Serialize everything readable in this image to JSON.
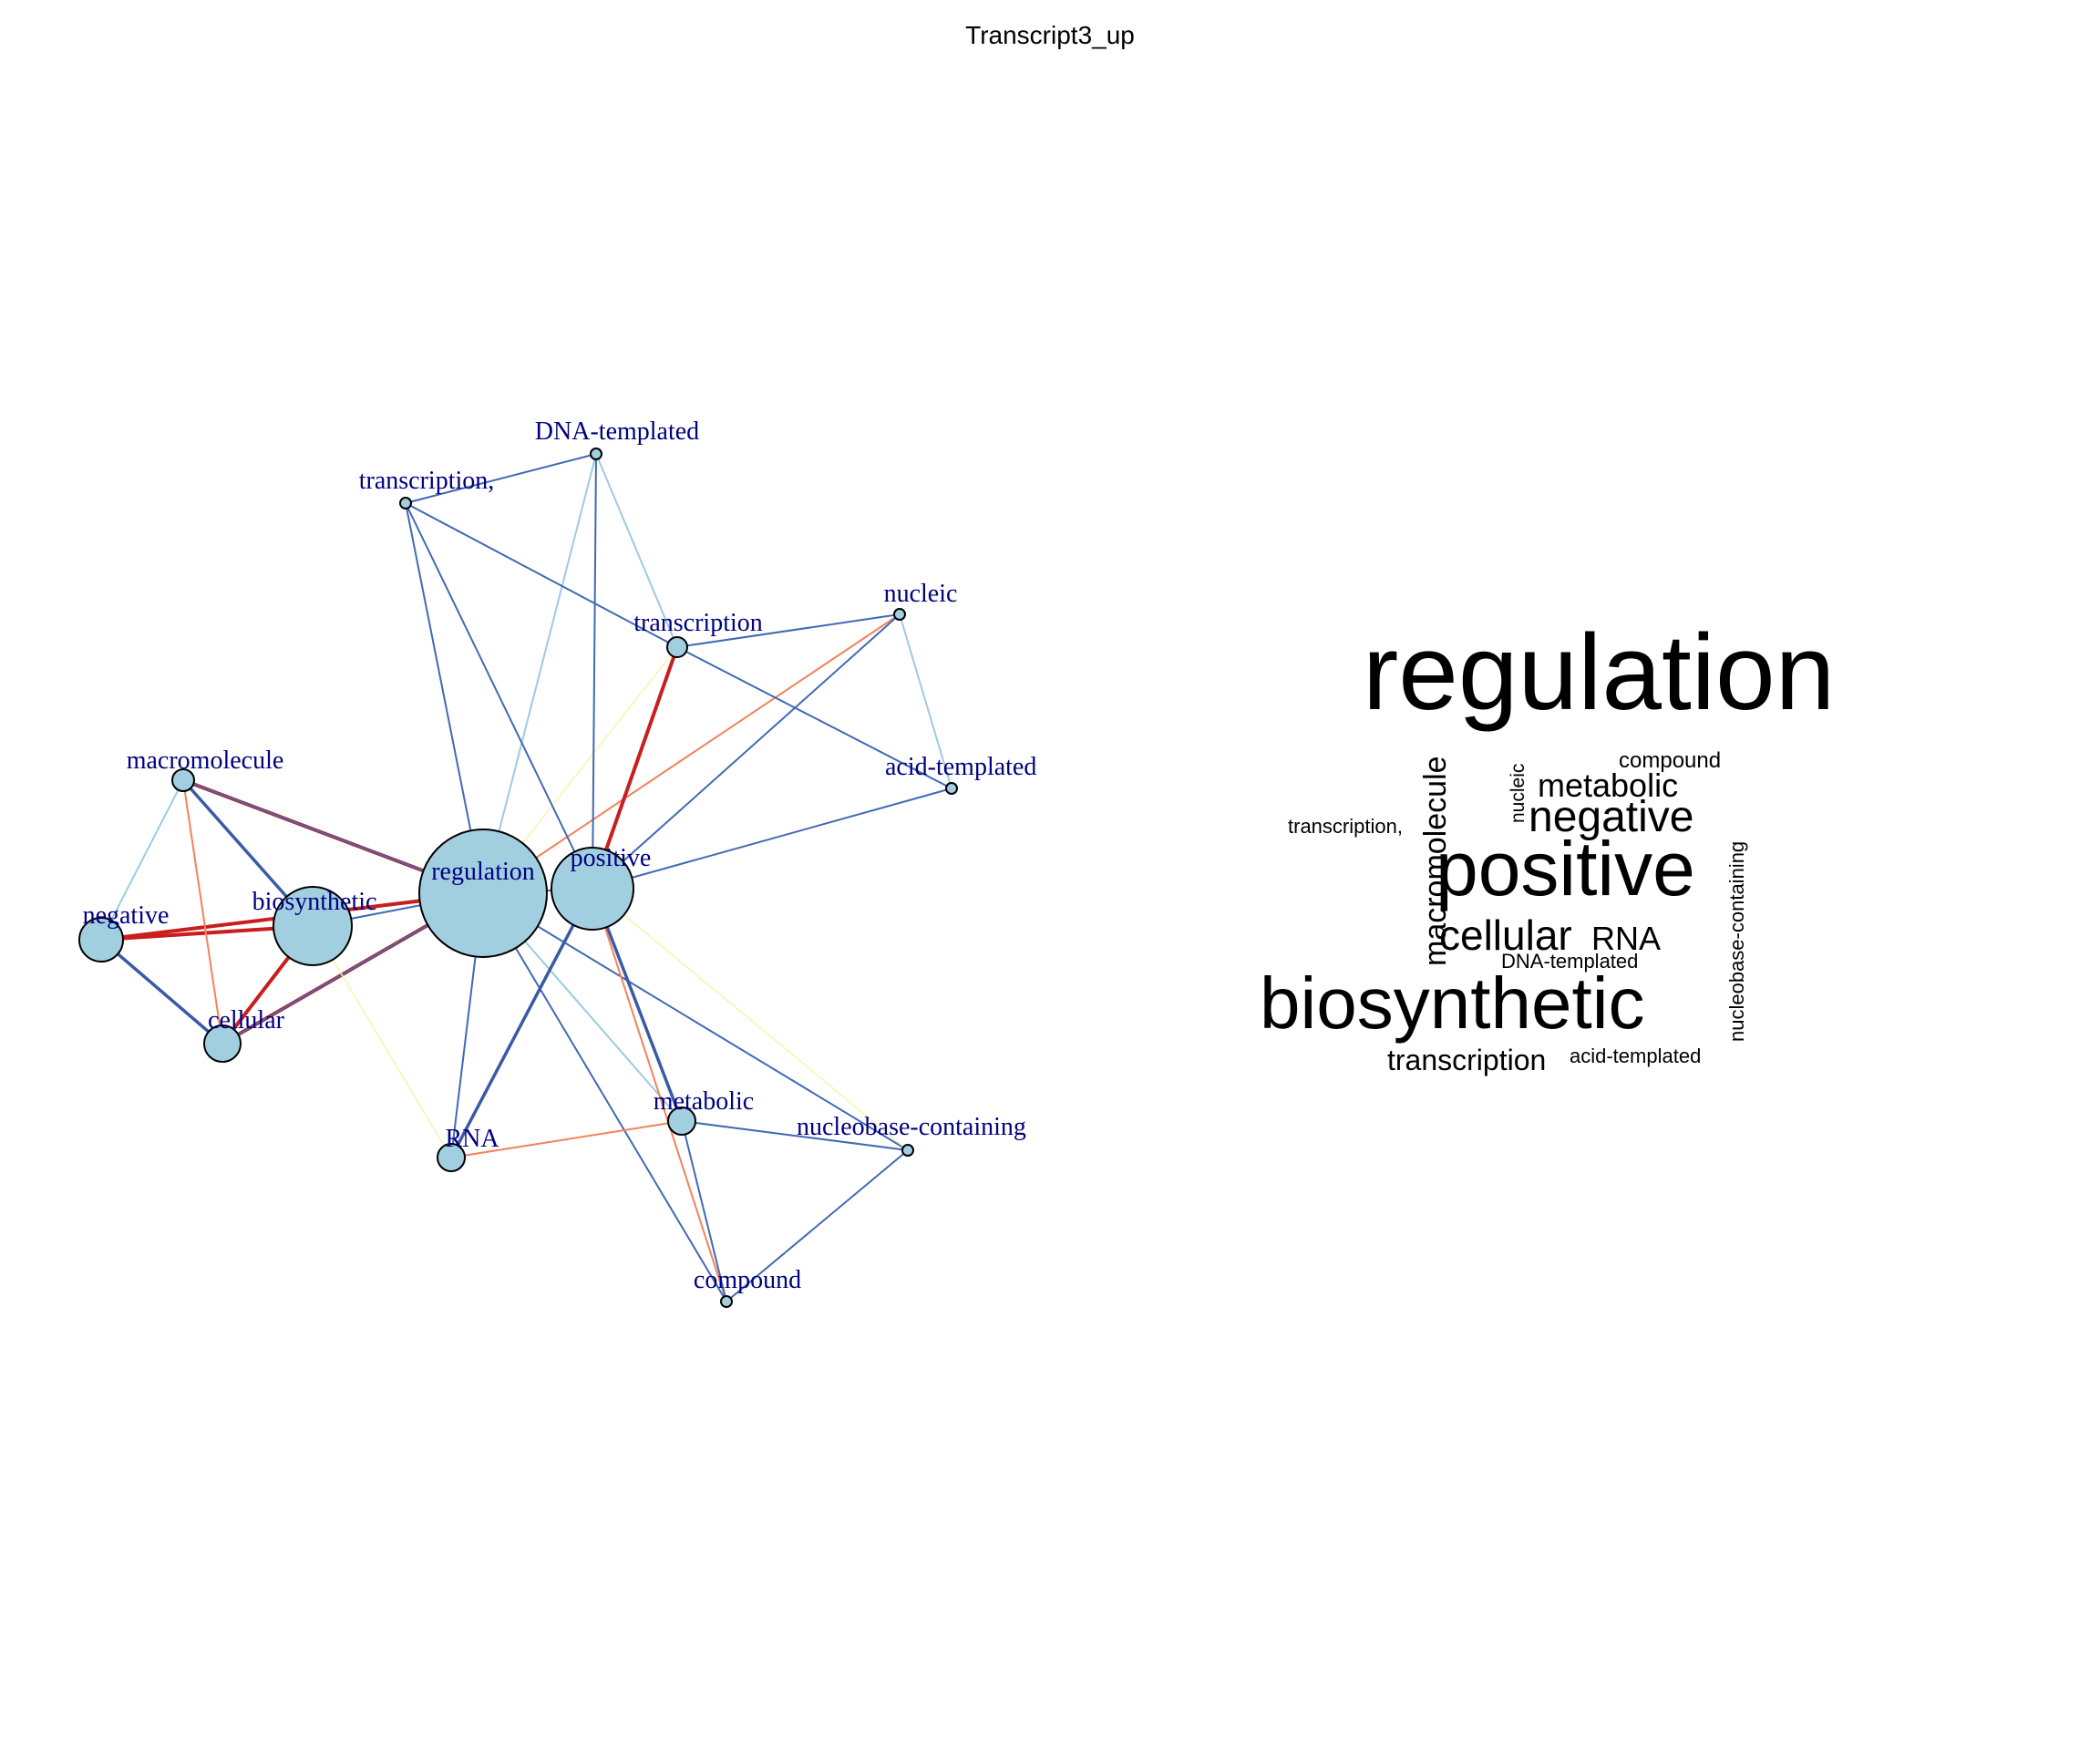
{
  "title": "Transcript3_up",
  "network": {
    "node_fill": "#a2cfe0",
    "label_color": "#000080",
    "edge_colors": {
      "light_blue": "#9ecae1",
      "blue": "#4169b4",
      "dark_blue": "#3a5aa8",
      "red": "#c81e1e",
      "orange": "#f4825a",
      "yellow": "#f5f5b4"
    },
    "nodes": [
      {
        "id": "regulation",
        "label": "regulation"
      },
      {
        "id": "positive",
        "label": "positive"
      },
      {
        "id": "biosynthetic",
        "label": "biosynthetic"
      },
      {
        "id": "negative",
        "label": "negative"
      },
      {
        "id": "cellular",
        "label": "cellular"
      },
      {
        "id": "macromolecule",
        "label": "macromolecule"
      },
      {
        "id": "transcription",
        "label": "transcription"
      },
      {
        "id": "transcription_comma",
        "label": "transcription,"
      },
      {
        "id": "dna_templated",
        "label": "DNA-templated"
      },
      {
        "id": "nucleic",
        "label": "nucleic"
      },
      {
        "id": "acid_templated",
        "label": "acid-templated"
      },
      {
        "id": "metabolic",
        "label": "metabolic"
      },
      {
        "id": "rna",
        "label": "RNA"
      },
      {
        "id": "nucleobase_containing",
        "label": "nucleobase-containing"
      },
      {
        "id": "compound",
        "label": "compound"
      }
    ],
    "edges": [
      {
        "source": "regulation",
        "target": "positive",
        "color": "blue"
      },
      {
        "source": "regulation",
        "target": "biosynthetic",
        "color": "blue"
      },
      {
        "source": "regulation",
        "target": "cellular",
        "color": "red"
      },
      {
        "source": "regulation",
        "target": "cellular",
        "color": "blue"
      },
      {
        "source": "regulation",
        "target": "macromolecule",
        "color": "red"
      },
      {
        "source": "regulation",
        "target": "macromolecule",
        "color": "blue"
      },
      {
        "source": "regulation",
        "target": "negative",
        "color": "red"
      },
      {
        "source": "regulation",
        "target": "transcription_comma",
        "color": "blue"
      },
      {
        "source": "regulation",
        "target": "dna_templated",
        "color": "light_blue"
      },
      {
        "source": "regulation",
        "target": "transcription",
        "color": "yellow"
      },
      {
        "source": "regulation",
        "target": "nucleic",
        "color": "orange"
      },
      {
        "source": "regulation",
        "target": "rna",
        "color": "blue"
      },
      {
        "source": "regulation",
        "target": "metabolic",
        "color": "light_blue"
      },
      {
        "source": "regulation",
        "target": "nucleobase_containing",
        "color": "blue"
      },
      {
        "source": "regulation",
        "target": "compound",
        "color": "blue"
      },
      {
        "source": "positive",
        "target": "transcription",
        "color": "red"
      },
      {
        "source": "positive",
        "target": "nucleic",
        "color": "blue"
      },
      {
        "source": "positive",
        "target": "acid_templated",
        "color": "blue"
      },
      {
        "source": "positive",
        "target": "dna_templated",
        "color": "blue"
      },
      {
        "source": "positive",
        "target": "transcription_comma",
        "color": "blue"
      },
      {
        "source": "positive",
        "target": "metabolic",
        "color": "dark_blue"
      },
      {
        "source": "positive",
        "target": "rna",
        "color": "dark_blue"
      },
      {
        "source": "positive",
        "target": "compound",
        "color": "orange"
      },
      {
        "source": "positive",
        "target": "nucleobase_containing",
        "color": "yellow"
      },
      {
        "source": "biosynthetic",
        "target": "negative",
        "color": "red"
      },
      {
        "source": "biosynthetic",
        "target": "cellular",
        "color": "red"
      },
      {
        "source": "biosynthetic",
        "target": "macromolecule",
        "color": "dark_blue"
      },
      {
        "source": "biosynthetic",
        "target": "rna",
        "color": "yellow"
      },
      {
        "source": "negative",
        "target": "cellular",
        "color": "dark_blue"
      },
      {
        "source": "negative",
        "target": "macromolecule",
        "color": "light_blue"
      },
      {
        "source": "macromolecule",
        "target": "cellular",
        "color": "orange"
      },
      {
        "source": "transcription_comma",
        "target": "dna_templated",
        "color": "blue"
      },
      {
        "source": "transcription_comma",
        "target": "transcription",
        "color": "blue"
      },
      {
        "source": "dna_templated",
        "target": "transcription",
        "color": "light_blue"
      },
      {
        "source": "transcription",
        "target": "nucleic",
        "color": "blue"
      },
      {
        "source": "transcription",
        "target": "acid_templated",
        "color": "blue"
      },
      {
        "source": "nucleic",
        "target": "acid_templated",
        "color": "light_blue"
      },
      {
        "source": "metabolic",
        "target": "rna",
        "color": "orange"
      },
      {
        "source": "metabolic",
        "target": "nucleobase_containing",
        "color": "blue"
      },
      {
        "source": "metabolic",
        "target": "compound",
        "color": "blue"
      },
      {
        "source": "nucleobase_containing",
        "target": "compound",
        "color": "blue"
      }
    ]
  },
  "wordcloud": {
    "words": [
      {
        "text": "regulation"
      },
      {
        "text": "positive"
      },
      {
        "text": "biosynthetic"
      },
      {
        "text": "negative"
      },
      {
        "text": "metabolic"
      },
      {
        "text": "cellular"
      },
      {
        "text": "RNA"
      },
      {
        "text": "macromolecule"
      },
      {
        "text": "transcription"
      },
      {
        "text": "nucleobase-containing"
      },
      {
        "text": "compound"
      },
      {
        "text": "nucleic"
      },
      {
        "text": "transcription,"
      },
      {
        "text": "DNA-templated"
      },
      {
        "text": "acid-templated"
      }
    ]
  }
}
